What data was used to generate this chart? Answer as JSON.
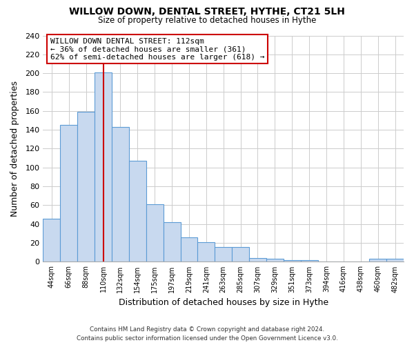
{
  "title": "WILLOW DOWN, DENTAL STREET, HYTHE, CT21 5LH",
  "subtitle": "Size of property relative to detached houses in Hythe",
  "xlabel": "Distribution of detached houses by size in Hythe",
  "ylabel": "Number of detached properties",
  "categories": [
    "44sqm",
    "66sqm",
    "88sqm",
    "110sqm",
    "132sqm",
    "154sqm",
    "175sqm",
    "197sqm",
    "219sqm",
    "241sqm",
    "263sqm",
    "285sqm",
    "307sqm",
    "329sqm",
    "351sqm",
    "373sqm",
    "394sqm",
    "416sqm",
    "438sqm",
    "460sqm",
    "482sqm"
  ],
  "values": [
    46,
    145,
    159,
    201,
    143,
    107,
    61,
    42,
    26,
    21,
    16,
    16,
    4,
    3,
    2,
    2,
    0,
    0,
    0,
    3,
    3
  ],
  "bar_color": "#c8d9ef",
  "bar_edge_color": "#5b9bd5",
  "ylim": [
    0,
    240
  ],
  "yticks": [
    0,
    20,
    40,
    60,
    80,
    100,
    120,
    140,
    160,
    180,
    200,
    220,
    240
  ],
  "annotation_title": "WILLOW DOWN DENTAL STREET: 112sqm",
  "annotation_line1": "← 36% of detached houses are smaller (361)",
  "annotation_line2": "62% of semi-detached houses are larger (618) →",
  "annotation_box_color": "#ffffff",
  "annotation_box_edge_color": "#cc0000",
  "property_marker_index": 3,
  "property_marker_color": "#cc0000",
  "footnote1": "Contains HM Land Registry data © Crown copyright and database right 2024.",
  "footnote2": "Contains public sector information licensed under the Open Government Licence v3.0.",
  "background_color": "#ffffff",
  "grid_color": "#cccccc"
}
